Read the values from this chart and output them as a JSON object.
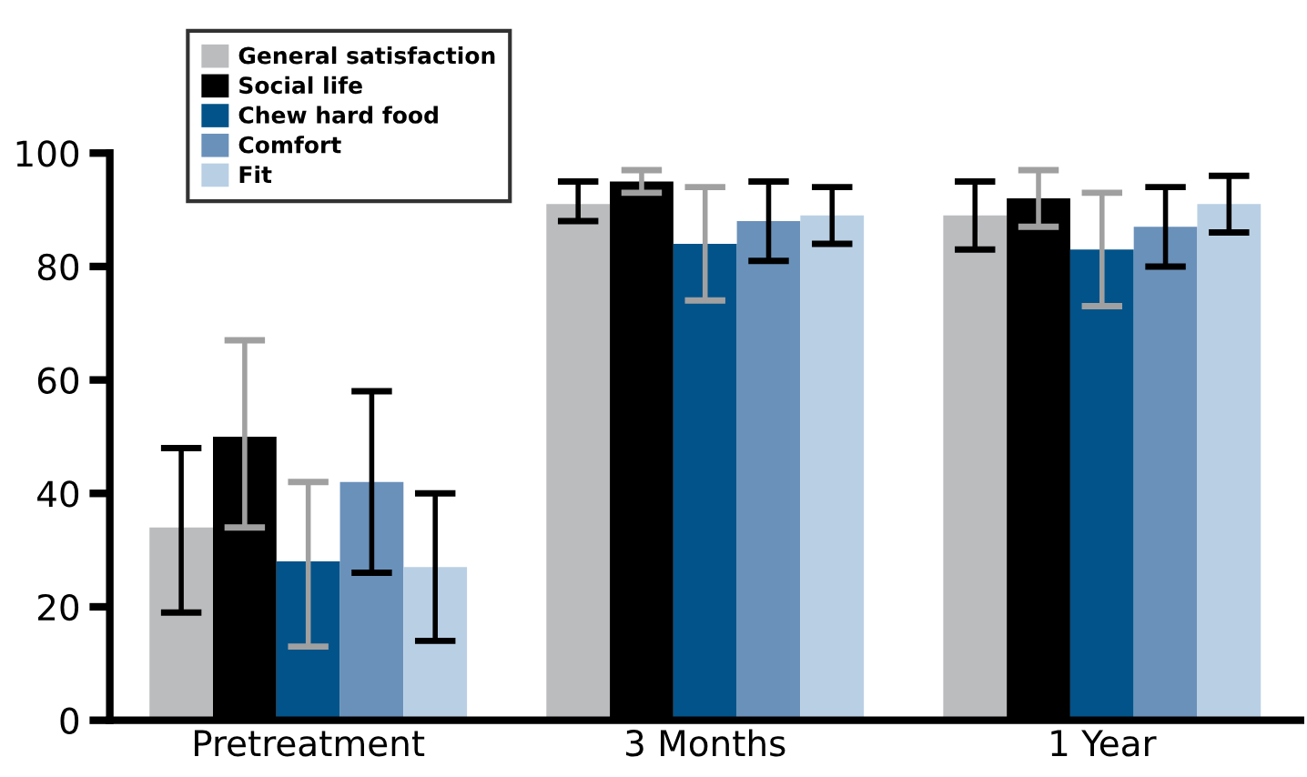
{
  "chart_data": {
    "type": "bar",
    "categories": [
      "Pretreatment",
      "3 Months",
      "1 Year"
    ],
    "series": [
      {
        "name": "General satisfaction",
        "color": "#bbbcbe",
        "values": [
          34,
          91,
          89
        ],
        "errors": [
          [
            19,
            48
          ],
          [
            88,
            95
          ],
          [
            83,
            95
          ]
        ]
      },
      {
        "name": "Social life",
        "color": "#000000",
        "values": [
          50,
          95,
          92
        ],
        "errors": [
          [
            34,
            67
          ],
          [
            93,
            97
          ],
          [
            87,
            97
          ]
        ]
      },
      {
        "name": "Chew hard food",
        "color": "#02538a",
        "values": [
          28,
          84,
          83
        ],
        "errors": [
          [
            13,
            42
          ],
          [
            74,
            94
          ],
          [
            73,
            93
          ]
        ]
      },
      {
        "name": "Comfort",
        "color": "#6a91ba",
        "values": [
          42,
          88,
          87
        ],
        "errors": [
          [
            26,
            58
          ],
          [
            81,
            95
          ],
          [
            80,
            94
          ]
        ]
      },
      {
        "name": "Fit",
        "color": "#b9cfe4",
        "values": [
          27,
          89,
          91
        ],
        "errors": [
          [
            14,
            40
          ],
          [
            84,
            94
          ],
          [
            86,
            96
          ]
        ]
      }
    ],
    "ylim": [
      0,
      100
    ],
    "yticks": [
      0,
      20,
      40,
      60,
      80,
      100
    ],
    "grid": false,
    "legend": "top left"
  }
}
